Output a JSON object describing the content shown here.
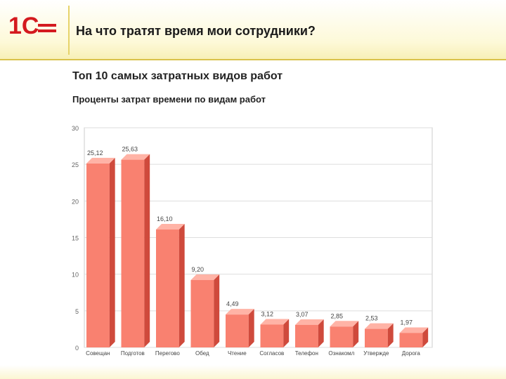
{
  "header": {
    "logo_text": "1С",
    "title": "На что тратят время мои сотрудники?"
  },
  "report": {
    "title": "Топ 10 самых затратных видов работ",
    "subtitle": "Проценты затрат времени по видам работ"
  },
  "colors": {
    "bar_front": "#f98170",
    "bar_side": "#cf4a3c",
    "bar_top": "#ffb3a6",
    "grid": "#dddddd",
    "logo": "#d41a1f"
  },
  "chart_data": {
    "type": "bar",
    "categories": [
      "Совещан",
      "Подготов",
      "Перегово",
      "Обед",
      "Чтение",
      "Согласов",
      "Телефон",
      "Ознакомл",
      "Утвержде",
      "Дорога"
    ],
    "values": [
      25.12,
      25.63,
      16.1,
      9.2,
      4.49,
      3.12,
      3.07,
      2.85,
      2.53,
      1.97
    ],
    "value_labels": [
      "25,12",
      "25,63",
      "16,10",
      "9,20",
      "4,49",
      "3,12",
      "3,07",
      "2,85",
      "2,53",
      "1,97"
    ],
    "ylim": [
      0,
      30
    ],
    "yticks": [
      0,
      5,
      10,
      15,
      20,
      25,
      30
    ],
    "ytick_labels": [
      "0",
      "5",
      "10",
      "15",
      "20",
      "25",
      "30"
    ],
    "grid": true,
    "title": "Проценты затрат времени по видам работ",
    "xlabel": "",
    "ylabel": ""
  }
}
